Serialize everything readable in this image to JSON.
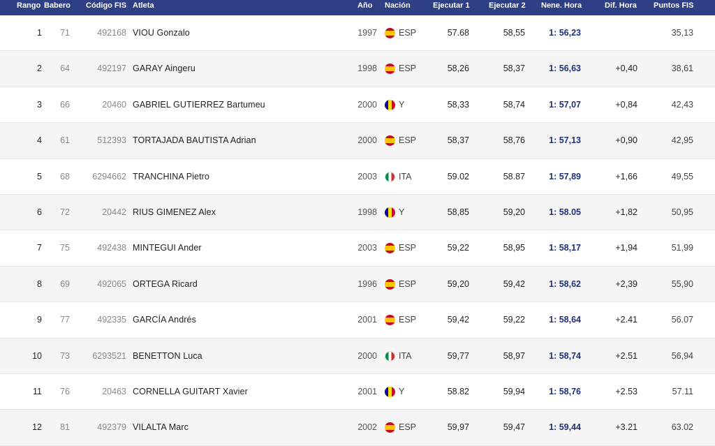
{
  "headers": {
    "rank": "Rango",
    "bib": "Babero",
    "fis_code": "Código FIS",
    "athlete": "Atleta",
    "year": "Año",
    "nation": "Nación",
    "run1": "Ejecutar 1",
    "run2": "Ejecutar 2",
    "total_time": "Nene. Hora",
    "diff": "Dif. Hora",
    "fis_points": "Puntos FIS"
  },
  "flag_colors": {
    "ESP": "#c60b1e",
    "ITA": "#009246",
    "AND": "#10069f"
  },
  "rows": [
    {
      "rank": "1",
      "bib": "71",
      "fis": "492168",
      "name": "VIOU Gonzalo",
      "year": "1997",
      "flag": "flag-esp",
      "nation": "ESP",
      "run1": "57.68",
      "run2": "58,55",
      "time": "1: 56,23",
      "diff": "",
      "points": "35,13"
    },
    {
      "rank": "2",
      "bib": "64",
      "fis": "492197",
      "name": "GARAY Aingeru",
      "year": "1998",
      "flag": "flag-esp",
      "nation": "ESP",
      "run1": "58,26",
      "run2": "58,37",
      "time": "1: 56,63",
      "diff": "+0,40",
      "points": "38,61"
    },
    {
      "rank": "3",
      "bib": "66",
      "fis": "20460",
      "name": "GABRIEL GUTIERREZ Bartumeu",
      "year": "2000",
      "flag": "flag-and",
      "nation": "Y",
      "run1": "58,33",
      "run2": "58,74",
      "time": "1: 57,07",
      "diff": "+0,84",
      "points": "42,43"
    },
    {
      "rank": "4",
      "bib": "61",
      "fis": "512393",
      "name": "TORTAJADA BAUTISTA Adrian",
      "year": "2000",
      "flag": "flag-esp",
      "nation": "ESP",
      "run1": "58,37",
      "run2": "58,76",
      "time": "1: 57,13",
      "diff": "+0,90",
      "points": "42,95"
    },
    {
      "rank": "5",
      "bib": "68",
      "fis": "6294662",
      "name": "TRANCHINA Pietro",
      "year": "2003",
      "flag": "flag-ita",
      "nation": "ITA",
      "run1": "59.02",
      "run2": "58.87",
      "time": "1: 57,89",
      "diff": "+1,66",
      "points": "49,55"
    },
    {
      "rank": "6",
      "bib": "72",
      "fis": "20442",
      "name": "RIUS GIMENEZ Alex",
      "year": "1998",
      "flag": "flag-and",
      "nation": "Y",
      "run1": "58,85",
      "run2": "59,20",
      "time": "1: 58.05",
      "diff": "+1,82",
      "points": "50,95"
    },
    {
      "rank": "7",
      "bib": "75",
      "fis": "492438",
      "name": "MINTEGUI Ander",
      "year": "2003",
      "flag": "flag-esp",
      "nation": "ESP",
      "run1": "59,22",
      "run2": "58,95",
      "time": "1: 58,17",
      "diff": "+1,94",
      "points": "51,99"
    },
    {
      "rank": "8",
      "bib": "69",
      "fis": "492065",
      "name": "ORTEGA Ricard",
      "year": "1996",
      "flag": "flag-esp",
      "nation": "ESP",
      "run1": "59,20",
      "run2": "59,42",
      "time": "1: 58,62",
      "diff": "+2,39",
      "points": "55,90"
    },
    {
      "rank": "9",
      "bib": "77",
      "fis": "492335",
      "name": "GARCÍA Andrés",
      "year": "2001",
      "flag": "flag-esp",
      "nation": "ESP",
      "run1": "59,42",
      "run2": "59,22",
      "time": "1: 58,64",
      "diff": "+2.41",
      "points": "56.07"
    },
    {
      "rank": "10",
      "bib": "73",
      "fis": "6293521",
      "name": "BENETTON Luca",
      "year": "2000",
      "flag": "flag-ita",
      "nation": "ITA",
      "run1": "59,77",
      "run2": "58,97",
      "time": "1: 58,74",
      "diff": "+2.51",
      "points": "56,94"
    },
    {
      "rank": "11",
      "bib": "76",
      "fis": "20463",
      "name": "CORNELLA GUITART Xavier",
      "year": "2001",
      "flag": "flag-and",
      "nation": "Y",
      "run1": "58.82",
      "run2": "59,94",
      "time": "1: 58,76",
      "diff": "+2.53",
      "points": "57.11"
    },
    {
      "rank": "12",
      "bib": "81",
      "fis": "492379",
      "name": "VILALTA Marc",
      "year": "2002",
      "flag": "flag-esp",
      "nation": "ESP",
      "run1": "59,97",
      "run2": "59,47",
      "time": "1: 59,44",
      "diff": "+3.21",
      "points": "63.02"
    }
  ]
}
